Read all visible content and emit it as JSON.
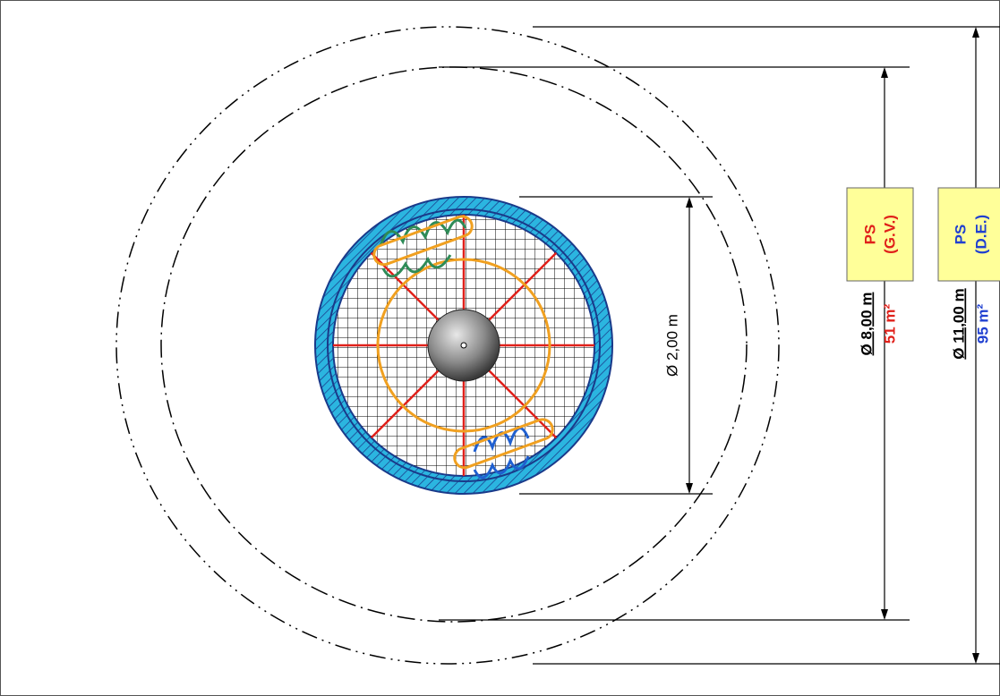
{
  "inner_diameter": {
    "label": "Ø 2,00 m"
  },
  "perimeter_gv": {
    "box_line1": "PS",
    "box_line2": "(G.V.)",
    "diameter": "Ø 8,00 m",
    "area": "51 m²"
  },
  "perimeter_de": {
    "box_line1": "PS",
    "box_line2": "(D.E.)",
    "diameter": "Ø 11,00 m",
    "area": "95 m²"
  }
}
